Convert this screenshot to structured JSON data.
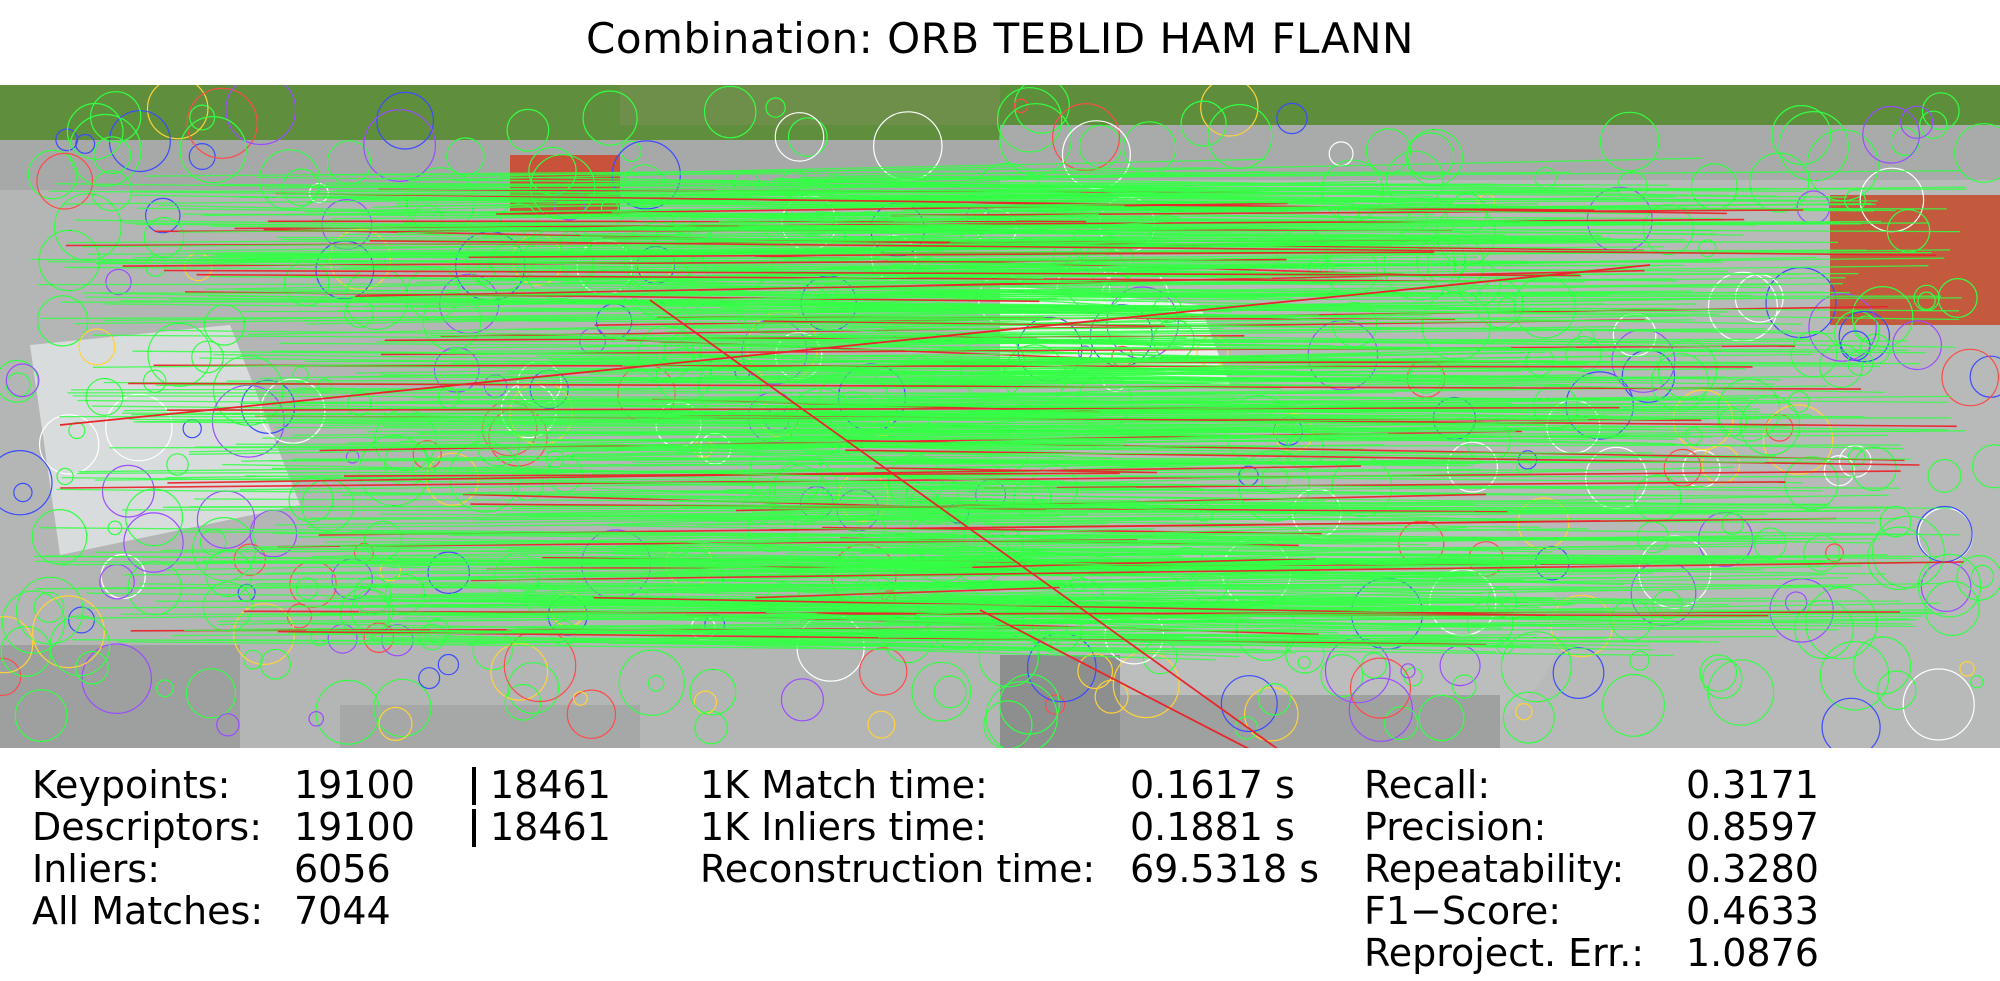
{
  "title": "Combination: ORB TEBLID HAM FLANN",
  "colors": {
    "inlier_match": "#33ff44",
    "outlier_match": "#e8252b",
    "keypoint_palette": [
      "#33ff44",
      "#9a4cff",
      "#3b4bff",
      "#ff4a4a",
      "#ffd23a",
      "#ffffff"
    ],
    "road": "#b6b8b7",
    "grass": "#5f8f3c",
    "roof": "#d9dcdd"
  },
  "stats_left": [
    {
      "label": "Keypoints:",
      "left": "19100",
      "right": "18461"
    },
    {
      "label": "Descriptors:",
      "left": "19100",
      "right": "18461"
    },
    {
      "label": "Inliers:",
      "left": "6056"
    },
    {
      "label": "All Matches:",
      "left": "7044"
    }
  ],
  "stats_mid": [
    {
      "label": "1K Match time:",
      "value": "0.1617 s"
    },
    {
      "label": "1K Inliers time:",
      "value": "0.1881 s"
    },
    {
      "label": "Reconstruction time:",
      "value": "69.5318 s"
    }
  ],
  "stats_right": [
    {
      "label": "Recall:",
      "value": "0.3171"
    },
    {
      "label": "Precision:",
      "value": "0.8597"
    },
    {
      "label": "Repeatability:",
      "value": "0.3280"
    },
    {
      "label": "F1−Score:",
      "value": "0.4633"
    },
    {
      "label": "Reproject. Err.:",
      "value": "1.0876"
    }
  ]
}
